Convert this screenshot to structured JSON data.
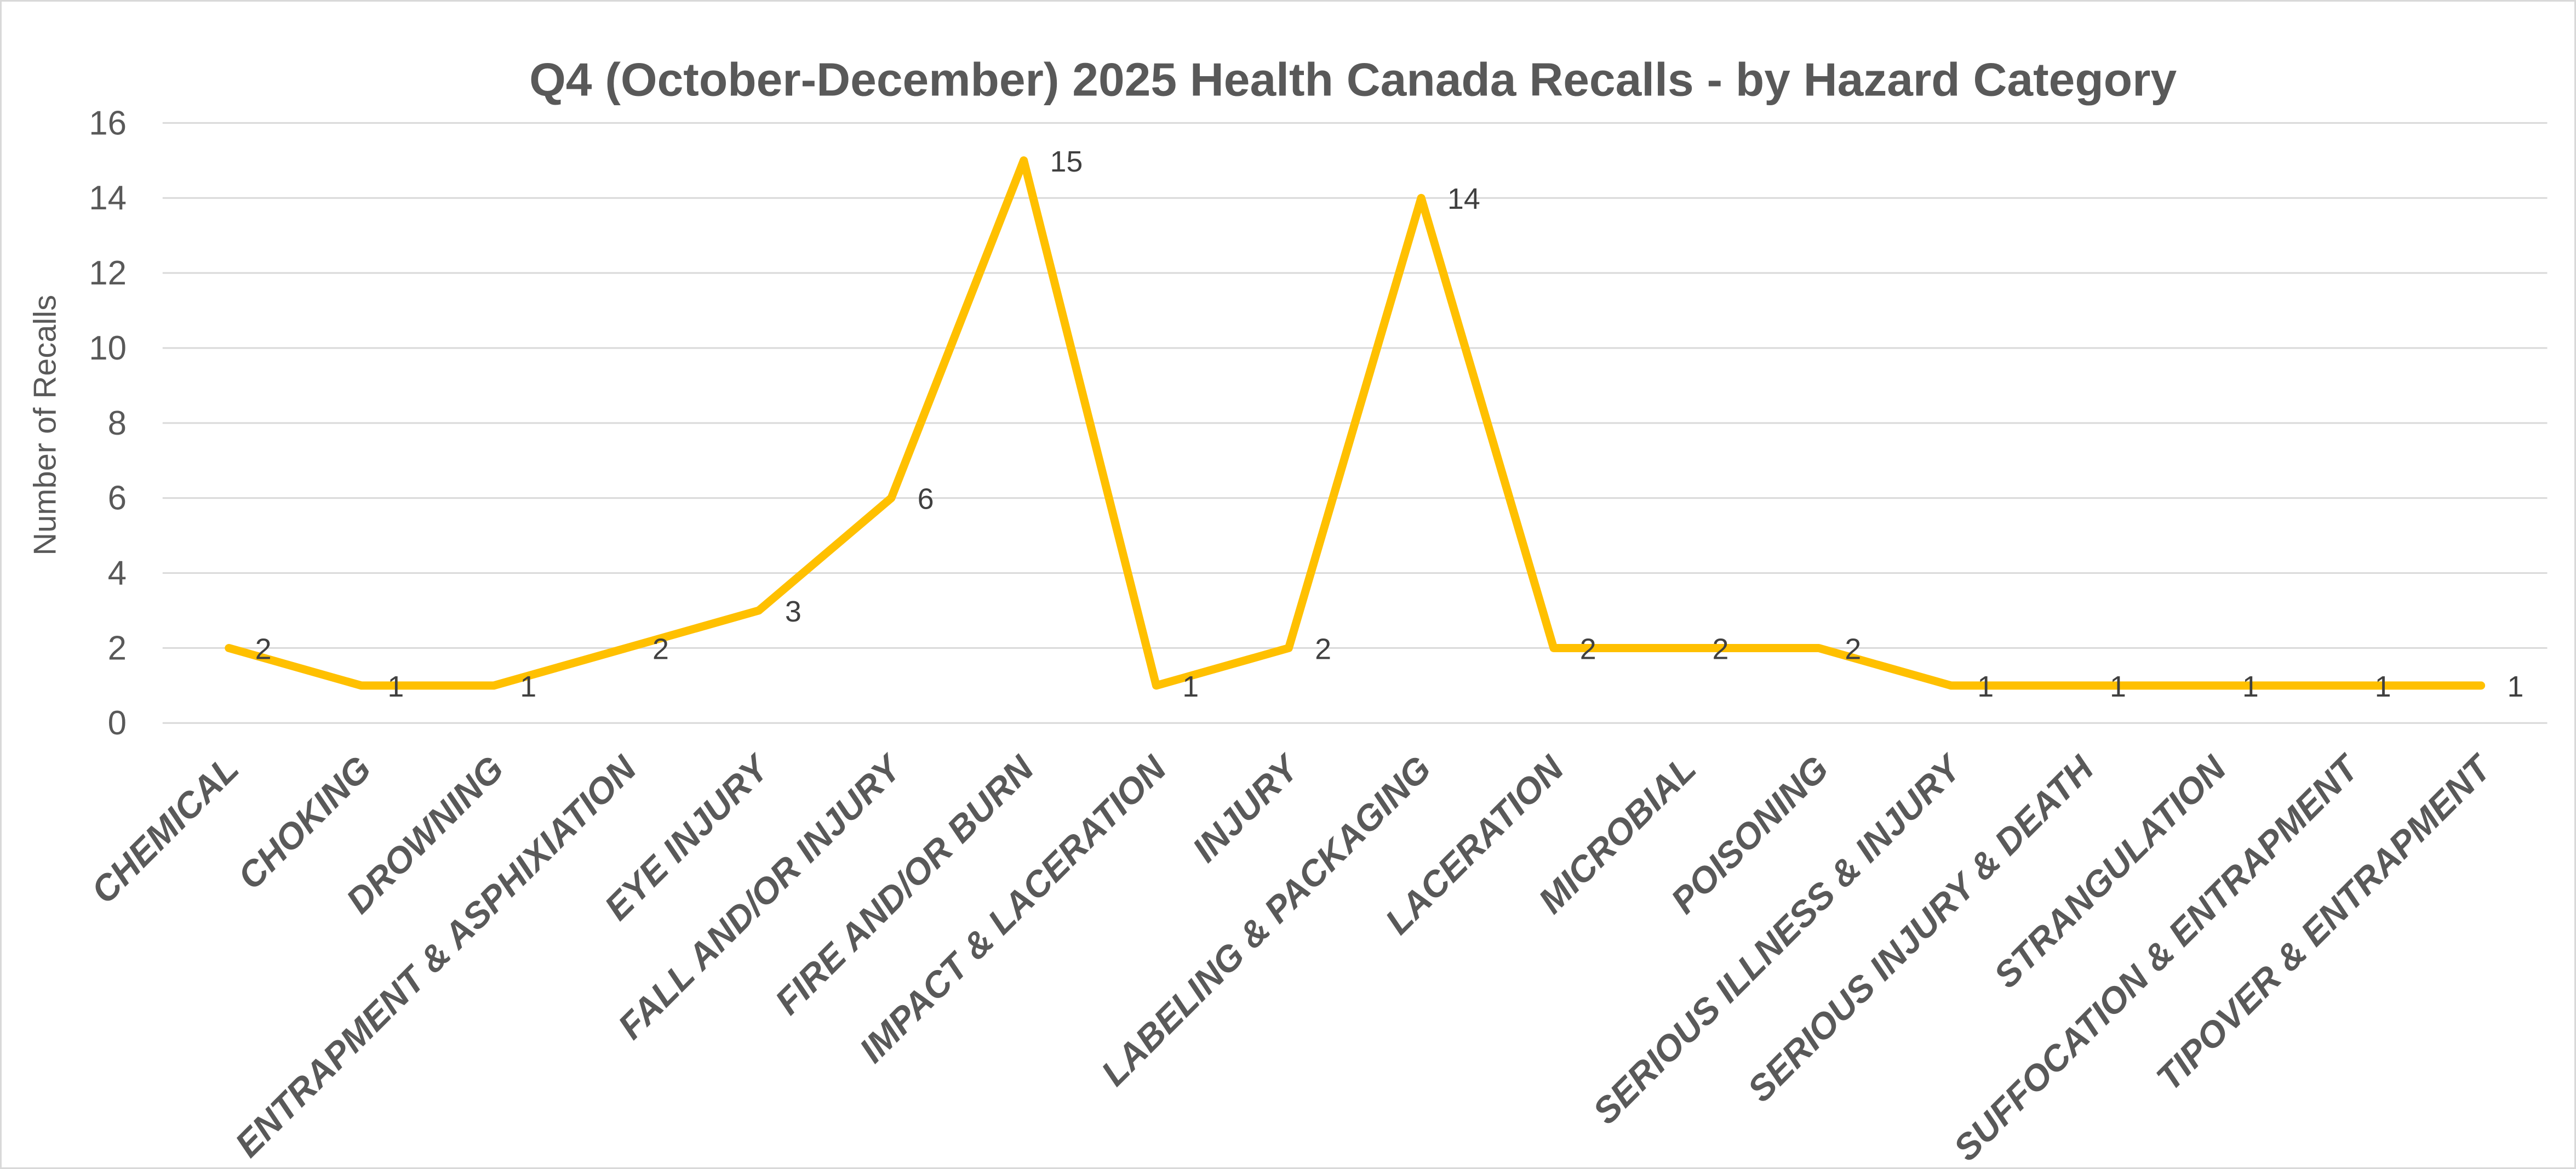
{
  "chart_data": {
    "type": "line",
    "title": "Q4 (October-December) 2025 Health Canada Recalls - by Hazard Category",
    "ylabel": "Number of Recalls",
    "xlabel": "",
    "categories": [
      "CHEMICAL",
      "CHOKING",
      "DROWNING",
      "ENTRAPMENT & ASPHIXIATION",
      "EYE INJURY",
      "FALL AND/OR INJURY",
      "FIRE AND/OR BURN",
      "IMPACT & LACERATION",
      "INJURY",
      "LABELING & PACKAGING",
      "LACERATION",
      "MICROBIAL",
      "POISONING",
      "SERIOUS ILLNESS & INJURY",
      "SERIOUS INJURY & DEATH",
      "STRANGULATION",
      "SUFFOCATION & ENTRAPMENT",
      "TIPOVER & ENTRAPMENT"
    ],
    "values": [
      2,
      1,
      1,
      2,
      3,
      6,
      15,
      1,
      2,
      14,
      2,
      2,
      2,
      1,
      1,
      1,
      1,
      1
    ],
    "y_ticks": [
      0,
      2,
      4,
      6,
      8,
      10,
      12,
      14,
      16
    ],
    "ylim": [
      0,
      16
    ],
    "grid": "horizontal",
    "legend": "none",
    "data_labels_shown": true,
    "colors": {
      "line": "#FFC000",
      "grid": "#D9D9D9",
      "title_text": "#595959",
      "axis_text": "#595959",
      "data_label_text": "#404040",
      "background": "#FFFFFF",
      "border": "#D9D9D9"
    }
  }
}
